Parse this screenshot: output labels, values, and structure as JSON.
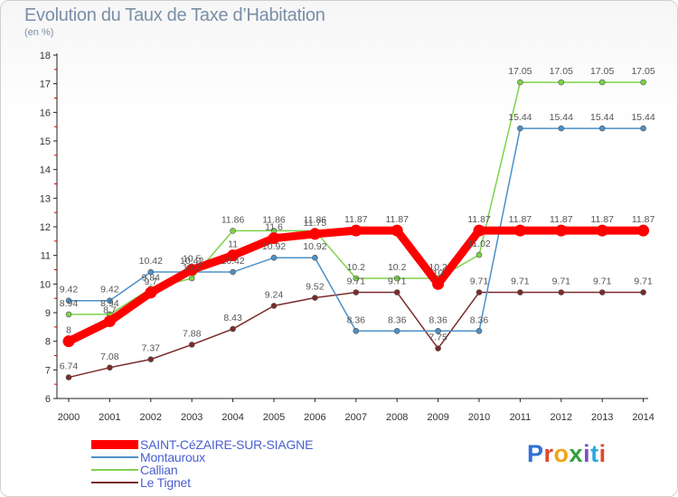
{
  "title": "Evolution du Taux de Taxe d’Habitation",
  "subtitle": "(en %)",
  "logo": {
    "letters": [
      "P",
      "r",
      "o",
      "x",
      "i",
      "t",
      "i"
    ],
    "colors": [
      "#2f6fd8",
      "#e0482c",
      "#f2a418",
      "#2f9f3d",
      "#7a52c7",
      "#2fa8d8",
      "#e0482c"
    ]
  },
  "legend": [
    {
      "name": "SAINT-CéZAIRE-SUR-SIAGNE",
      "color": "#ff0000"
    },
    {
      "name": "Montauroux",
      "color": "#4d90c8"
    },
    {
      "name": "Callian",
      "color": "#7ed24a"
    },
    {
      "name": "Le Tignet",
      "color": "#7b2a2a"
    }
  ],
  "chart_data": {
    "type": "line",
    "x": [
      "2000",
      "2001",
      "2002",
      "2003",
      "2004",
      "2005",
      "2006",
      "2007",
      "2008",
      "2009",
      "2010",
      "2011",
      "2012",
      "2013",
      "2014"
    ],
    "ylim": [
      6,
      18
    ],
    "yticks": [
      "6",
      "7",
      "8",
      "9",
      "10",
      "11",
      "12",
      "13",
      "14",
      "15",
      "16",
      "17",
      "18"
    ],
    "grid": false,
    "series": [
      {
        "name": "Le Tignet",
        "color": "#7b2a2a",
        "values": [
          6.74,
          7.08,
          7.37,
          7.88,
          8.43,
          9.24,
          9.52,
          9.71,
          9.71,
          7.75,
          9.71,
          9.71,
          9.71,
          9.71,
          9.71
        ],
        "labels": [
          "6.74",
          "7.08",
          "7.37",
          "7.88",
          "8.43",
          "9.24",
          "9.52",
          "9.71",
          "9.71",
          "7.75",
          "9.71",
          "9.71",
          "9.71",
          "9.71",
          "9.71"
        ]
      },
      {
        "name": "Callian",
        "color": "#7ed24a",
        "values": [
          8.94,
          8.94,
          9.84,
          10.2,
          11.86,
          11.86,
          11.86,
          10.2,
          10.2,
          10.2,
          11.02,
          17.05,
          17.05,
          17.05,
          17.05
        ],
        "labels": [
          "8.94",
          "8.94",
          "9.84",
          "10.2",
          "11.86",
          "11.86",
          "11.86",
          "10.2",
          "10.2",
          "10.2",
          "11.02",
          "17.05",
          "17.05",
          "17.05",
          "17.05"
        ]
      },
      {
        "name": "Montauroux",
        "color": "#4d90c8",
        "values": [
          9.42,
          9.42,
          10.42,
          10.42,
          10.42,
          10.92,
          10.92,
          8.36,
          8.36,
          8.36,
          8.36,
          15.44,
          15.44,
          15.44,
          15.44
        ],
        "labels": [
          "9.42",
          "9.42",
          "10.42",
          "10.42",
          "10.42",
          "10.92",
          "10.92",
          "8.36",
          "8.36",
          "8.36",
          "8.36",
          "15.44",
          "15.44",
          "15.44",
          "15.44"
        ]
      },
      {
        "name": "SAINT-CéZAIRE-SUR-SIAGNE",
        "color": "#ff0000",
        "values": [
          8,
          8.7,
          9.7,
          10.5,
          11,
          11.6,
          11.75,
          11.87,
          11.87,
          10,
          11.87,
          11.87,
          11.87,
          11.87,
          11.87
        ],
        "labels": [
          "8",
          "8.7",
          "9.7",
          "10.5",
          "11",
          "11.6",
          "11.75",
          "11.87",
          "11.87",
          "10",
          "11.87",
          "11.87",
          "11.87",
          "11.87",
          "11.87"
        ]
      }
    ]
  }
}
